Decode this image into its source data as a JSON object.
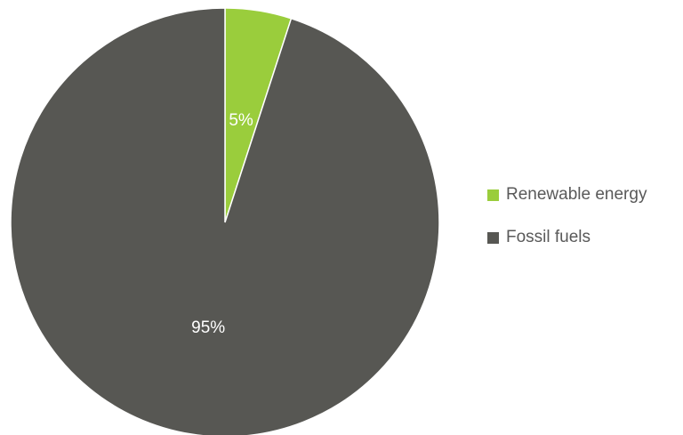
{
  "chart_data": {
    "type": "pie",
    "categories": [
      "Renewable energy",
      "Fossil fuels"
    ],
    "values": [
      5,
      95
    ],
    "data_labels": [
      "5%",
      "95%"
    ],
    "colors": [
      "#9ACD3C",
      "#575753"
    ],
    "start_angle": "12 o'clock",
    "direction": "clockwise",
    "legend_position": "right"
  }
}
